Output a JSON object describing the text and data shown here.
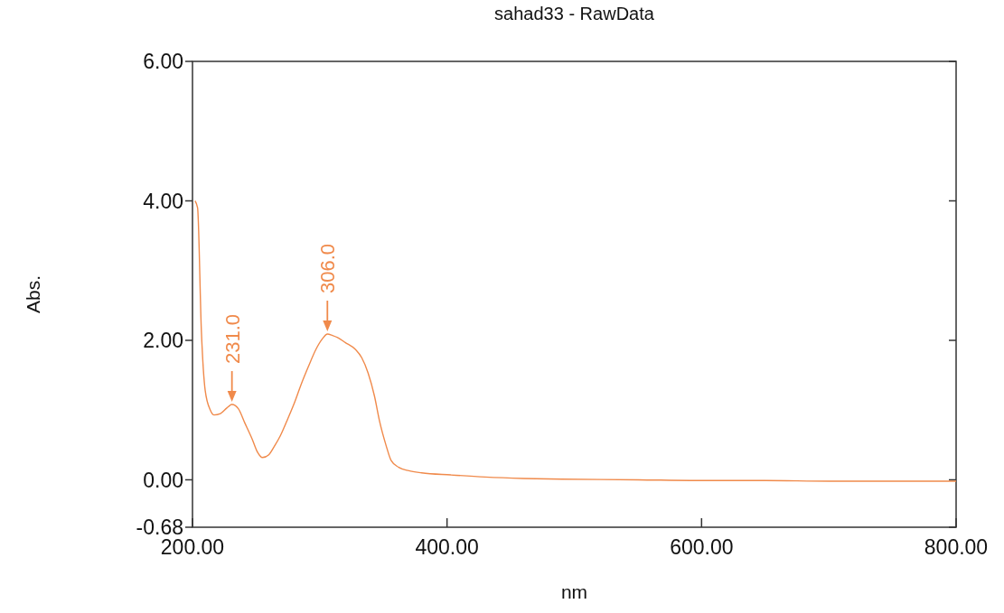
{
  "chart_data": {
    "type": "line",
    "title": "sahad33 - RawData",
    "xlabel": "nm",
    "ylabel": "Abs.",
    "xlim": [
      200,
      800
    ],
    "xticks": [
      {
        "value": 200,
        "label": "200.00"
      },
      {
        "value": 400,
        "label": "400.00"
      },
      {
        "value": 600,
        "label": "600.00"
      },
      {
        "value": 800,
        "label": "800.00"
      }
    ],
    "ylim": [
      -0.68,
      6
    ],
    "yticks": [
      {
        "value": -0.68,
        "label": "-0.68"
      },
      {
        "value": 0,
        "label": "0.00"
      },
      {
        "value": 2,
        "label": "2.00"
      },
      {
        "value": 4,
        "label": "4.00"
      },
      {
        "value": 6,
        "label": "6.00"
      }
    ],
    "grid": false,
    "marker": "none",
    "line_style": "solid",
    "series": [
      {
        "color": "#f08a4b",
        "x": [
          202,
          204,
          207,
          210,
          214,
          217,
          222,
          227,
          231,
          236,
          241,
          247,
          251,
          255,
          260,
          264,
          269,
          275,
          280,
          285,
          291,
          297,
          302,
          306,
          310,
          314,
          320,
          328,
          333,
          338,
          343,
          347,
          352,
          356,
          362,
          370,
          380,
          403,
          430,
          460,
          490,
          550,
          600,
          650,
          700,
          750,
          800
        ],
        "values": [
          4.0,
          3.9,
          2.13,
          1.28,
          1.0,
          0.93,
          0.95,
          1.03,
          1.08,
          1.02,
          0.82,
          0.58,
          0.4,
          0.32,
          0.36,
          0.47,
          0.63,
          0.88,
          1.1,
          1.35,
          1.62,
          1.87,
          2.02,
          2.09,
          2.07,
          2.04,
          1.97,
          1.87,
          1.75,
          1.53,
          1.2,
          0.84,
          0.5,
          0.28,
          0.18,
          0.13,
          0.1,
          0.07,
          0.04,
          0.02,
          0.01,
          0.0,
          -0.01,
          -0.01,
          -0.02,
          -0.02,
          -0.02
        ]
      }
    ],
    "annotations": [
      {
        "text": "231.0",
        "x": 231,
        "y": 1.08
      },
      {
        "text": "306.0",
        "x": 306,
        "y": 2.09
      }
    ]
  }
}
